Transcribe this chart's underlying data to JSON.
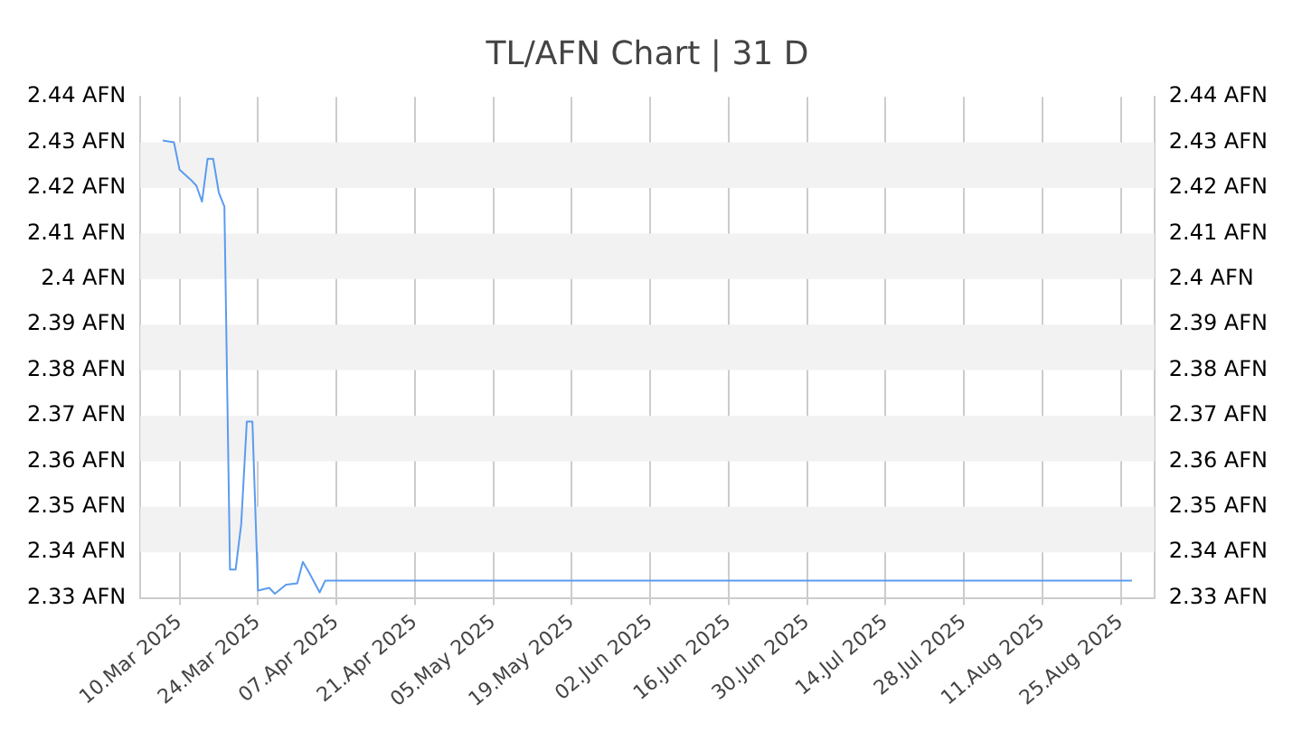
{
  "chart_data": {
    "type": "line",
    "title": "TL/AFN Chart | 31 D",
    "x": [
      "2025-03-07",
      "2025-03-09",
      "2025-03-10",
      "2025-03-12",
      "2025-03-13",
      "2025-03-14",
      "2025-03-15",
      "2025-03-16",
      "2025-03-17",
      "2025-03-18",
      "2025-03-19",
      "2025-03-20",
      "2025-03-21",
      "2025-03-22",
      "2025-03-23",
      "2025-03-24",
      "2025-03-26",
      "2025-03-27",
      "2025-03-29",
      "2025-03-31",
      "2025-04-01",
      "2025-04-02",
      "2025-04-04",
      "2025-04-05",
      "2025-08-27"
    ],
    "series": [
      {
        "color": "#5b9bf0",
        "values": [
          2.4304,
          2.43,
          2.424,
          2.4218,
          2.4205,
          2.417,
          2.4264,
          2.4264,
          2.419,
          2.4159,
          2.3362,
          2.3362,
          2.3462,
          2.3687,
          2.3687,
          2.3316,
          2.3322,
          2.3309,
          2.3329,
          2.3332,
          2.3379,
          2.3358,
          2.3312,
          2.3338,
          2.3338
        ]
      }
    ],
    "xlim": [
      "2025-03-03",
      "2025-08-31"
    ],
    "xticks": [
      {
        "value": "2025-03-10",
        "label": "10.Mar 2025"
      },
      {
        "value": "2025-03-24",
        "label": "24.Mar 2025"
      },
      {
        "value": "2025-04-07",
        "label": "07.Apr 2025"
      },
      {
        "value": "2025-04-21",
        "label": "21.Apr 2025"
      },
      {
        "value": "2025-05-05",
        "label": "05.May 2025"
      },
      {
        "value": "2025-05-19",
        "label": "19.May 2025"
      },
      {
        "value": "2025-06-02",
        "label": "02.Jun 2025"
      },
      {
        "value": "2025-06-16",
        "label": "16.Jun 2025"
      },
      {
        "value": "2025-06-30",
        "label": "30.Jun 2025"
      },
      {
        "value": "2025-07-14",
        "label": "14.Jul 2025"
      },
      {
        "value": "2025-07-28",
        "label": "28.Jul 2025"
      },
      {
        "value": "2025-08-11",
        "label": "11.Aug 2025"
      },
      {
        "value": "2025-08-25",
        "label": "25.Aug 2025"
      }
    ],
    "ylim": [
      2.33,
      2.44
    ],
    "yticks": [
      {
        "value": 2.33,
        "label": "2.33 AFN"
      },
      {
        "value": 2.34,
        "label": "2.34 AFN"
      },
      {
        "value": 2.35,
        "label": "2.35 AFN"
      },
      {
        "value": 2.36,
        "label": "2.36 AFN"
      },
      {
        "value": 2.37,
        "label": "2.37 AFN"
      },
      {
        "value": 2.38,
        "label": "2.38 AFN"
      },
      {
        "value": 2.39,
        "label": "2.39 AFN"
      },
      {
        "value": 2.4,
        "label": "2.4 AFN"
      },
      {
        "value": 2.41,
        "label": "2.41 AFN"
      },
      {
        "value": 2.42,
        "label": "2.42 AFN"
      },
      {
        "value": 2.43,
        "label": "2.43 AFN"
      },
      {
        "value": 2.44,
        "label": "2.44 AFN"
      }
    ],
    "y2lim": [
      2.33,
      2.44
    ],
    "y2ticks": [
      {
        "value": 2.33,
        "label": "2.33 AFN"
      },
      {
        "value": 2.34,
        "label": "2.34 AFN"
      },
      {
        "value": 2.35,
        "label": "2.35 AFN"
      },
      {
        "value": 2.36,
        "label": "2.36 AFN"
      },
      {
        "value": 2.37,
        "label": "2.37 AFN"
      },
      {
        "value": 2.38,
        "label": "2.38 AFN"
      },
      {
        "value": 2.39,
        "label": "2.39 AFN"
      },
      {
        "value": 2.4,
        "label": "2.4 AFN"
      },
      {
        "value": 2.41,
        "label": "2.41 AFN"
      },
      {
        "value": 2.42,
        "label": "2.42 AFN"
      },
      {
        "value": 2.43,
        "label": "2.43 AFN"
      },
      {
        "value": 2.44,
        "label": "2.44 AFN"
      }
    ],
    "bands": [
      {
        "axis": "y",
        "from": 2.34,
        "to": 2.35,
        "color": "#f2f2f2"
      },
      {
        "axis": "y",
        "from": 2.36,
        "to": 2.37,
        "color": "#f2f2f2"
      },
      {
        "axis": "y",
        "from": 2.38,
        "to": 2.39,
        "color": "#f2f2f2"
      },
      {
        "axis": "y",
        "from": 2.4,
        "to": 2.41,
        "color": "#f2f2f2"
      },
      {
        "axis": "y",
        "from": 2.42,
        "to": 2.43,
        "color": "#f2f2f2"
      }
    ],
    "grid": "x",
    "legend": false,
    "marker": "none",
    "line_style": "solid"
  }
}
